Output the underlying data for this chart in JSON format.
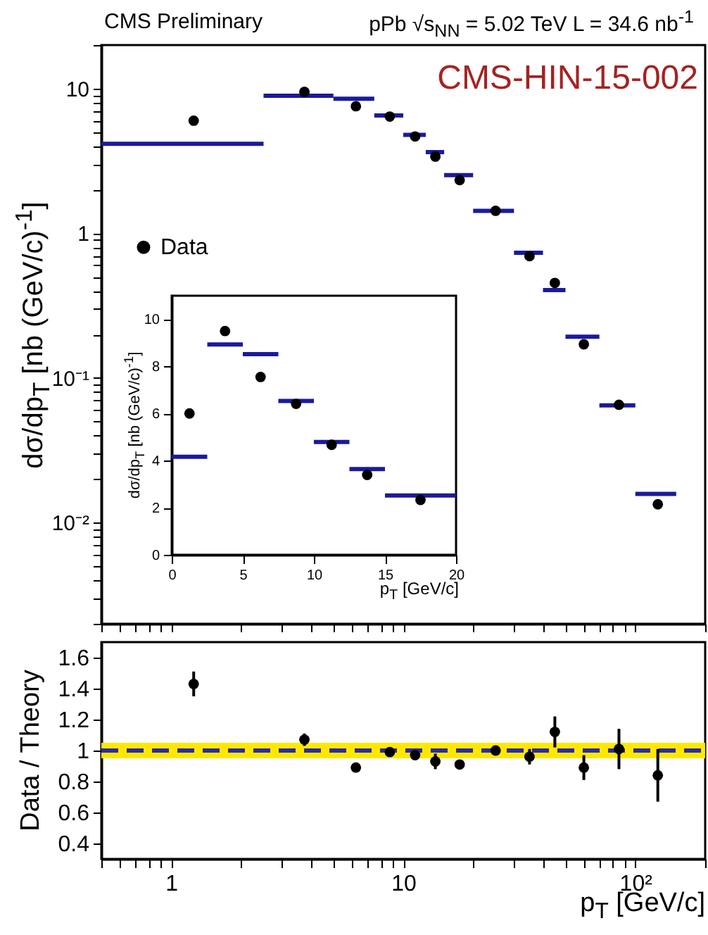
{
  "chart_data": [
    {
      "type": "scatter",
      "title": "CMS Preliminary",
      "subtitle": "pPb √s$_{NN}$ = 5.02 TeV L = 34.6 nb$^{-1}$",
      "ylabel": "dσ/dp$_{T}$ [nb (GeV/c)$^{-1}$]",
      "annotations": [
        "CMS-HIN-15-002"
      ],
      "log": "xy",
      "xlim": [
        0.5,
        200
      ],
      "ylim": [
        0.002,
        20
      ],
      "tick_labels": "y",
      "legend": "left",
      "xticks": [
        {
          "value": 0.5,
          "label": null
        },
        {
          "value": 0.6,
          "label": null
        },
        {
          "value": 0.7,
          "label": null
        },
        {
          "value": 0.8,
          "label": null
        },
        {
          "value": 0.9,
          "label": null
        },
        1,
        {
          "value": 2,
          "label": null
        },
        {
          "value": 3,
          "label": null
        },
        {
          "value": 4,
          "label": null
        },
        {
          "value": 5,
          "label": null
        },
        {
          "value": 6,
          "label": null
        },
        {
          "value": 7,
          "label": null
        },
        {
          "value": 8,
          "label": null
        },
        {
          "value": 9,
          "label": null
        },
        10,
        {
          "value": 20,
          "label": null
        },
        {
          "value": 30,
          "label": null
        },
        {
          "value": 40,
          "label": null
        },
        {
          "value": 50,
          "label": null
        },
        {
          "value": 60,
          "label": null
        },
        {
          "value": 70,
          "label": null
        },
        {
          "value": 80,
          "label": null
        },
        {
          "value": 90,
          "label": null
        },
        {
          "value": 100,
          "label": null
        },
        {
          "value": 200,
          "label": null
        }
      ],
      "yticks": [
        {
          "value": 0.002,
          "label": null
        },
        {
          "value": 0.003,
          "label": null
        },
        {
          "value": 0.004,
          "label": null
        },
        {
          "value": 0.005,
          "label": null
        },
        {
          "value": 0.006,
          "label": null
        },
        {
          "value": 0.007,
          "label": null
        },
        {
          "value": 0.008,
          "label": null
        },
        {
          "value": 0.009,
          "label": null
        },
        {
          "value": 0.01,
          "label": "10⁻²"
        },
        {
          "value": 0.02,
          "label": null
        },
        {
          "value": 0.03,
          "label": null
        },
        {
          "value": 0.04,
          "label": null
        },
        {
          "value": 0.05,
          "label": null
        },
        {
          "value": 0.06,
          "label": null
        },
        {
          "value": 0.07,
          "label": null
        },
        {
          "value": 0.08,
          "label": null
        },
        {
          "value": 0.09,
          "label": null
        },
        {
          "value": 0.1,
          "label": "10⁻¹"
        },
        {
          "value": 0.2,
          "label": null
        },
        {
          "value": 0.3,
          "label": null
        },
        {
          "value": 0.4,
          "label": null
        },
        {
          "value": 0.5,
          "label": null
        },
        {
          "value": 0.6,
          "label": null
        },
        {
          "value": 0.7,
          "label": null
        },
        {
          "value": 0.8,
          "label": null
        },
        {
          "value": 0.9,
          "label": null
        },
        1,
        {
          "value": 2,
          "label": null
        },
        {
          "value": 3,
          "label": null
        },
        {
          "value": 4,
          "label": null
        },
        {
          "value": 5,
          "label": null
        },
        {
          "value": 6,
          "label": null
        },
        {
          "value": 7,
          "label": null
        },
        {
          "value": 8,
          "label": null
        },
        {
          "value": 9,
          "label": null
        },
        10,
        {
          "value": 20,
          "label": null
        }
      ],
      "series": [
        {
          "name": "Data",
          "marker": "circle",
          "color": "#000000",
          "x": [
            1.25,
            3.75,
            6.25,
            8.75,
            11.25,
            13.75,
            17.5,
            25,
            35,
            45,
            60,
            85,
            125
          ],
          "values": [
            6.0,
            9.5,
            7.55,
            6.41,
            4.67,
            3.39,
            2.33,
            1.43,
            0.695,
            0.454,
            0.171,
            0.0653,
            0.0134
          ]
        },
        {
          "type": "line",
          "color": "#1a1a9c",
          "x": [
            0.5,
            2.5
          ],
          "values": [
            4.16,
            4.16
          ]
        },
        {
          "type": "line",
          "color": "#1a1a9c",
          "x": [
            2.5,
            5
          ],
          "values": [
            8.93,
            8.93
          ]
        },
        {
          "type": "line",
          "color": "#1a1a9c",
          "x": [
            5,
            7.5
          ],
          "values": [
            8.52,
            8.52
          ]
        },
        {
          "type": "line",
          "color": "#1a1a9c",
          "x": [
            7.5,
            10
          ],
          "values": [
            6.53,
            6.53
          ]
        },
        {
          "type": "line",
          "color": "#1a1a9c",
          "x": [
            10,
            12.5
          ],
          "values": [
            4.79,
            4.79
          ]
        },
        {
          "type": "line",
          "color": "#1a1a9c",
          "x": [
            12.5,
            15
          ],
          "values": [
            3.64,
            3.64
          ]
        },
        {
          "type": "line",
          "color": "#1a1a9c",
          "x": [
            15,
            20
          ],
          "values": [
            2.52,
            2.52
          ]
        },
        {
          "type": "line",
          "color": "#1a1a9c",
          "x": [
            20,
            30
          ],
          "values": [
            1.43,
            1.43
          ]
        },
        {
          "type": "line",
          "color": "#1a1a9c",
          "x": [
            30,
            40
          ],
          "values": [
            0.733,
            0.733
          ]
        },
        {
          "type": "line",
          "color": "#1a1a9c",
          "x": [
            40,
            50
          ],
          "values": [
            0.405,
            0.405
          ]
        },
        {
          "type": "line",
          "color": "#1a1a9c",
          "x": [
            50,
            70
          ],
          "values": [
            0.193,
            0.193
          ]
        },
        {
          "type": "line",
          "color": "#1a1a9c",
          "x": [
            70,
            100
          ],
          "values": [
            0.0647,
            0.0647
          ]
        },
        {
          "type": "line",
          "color": "#1a1a9c",
          "x": [
            100,
            150
          ],
          "values": [
            0.0158,
            0.0158
          ]
        }
      ]
    },
    {
      "type": "scatter",
      "xlabel": "p$_{T}$ [GeV/c]",
      "ylabel": "dσ/dp$_{T}$ [nb (GeV/c)$^{-1}$]",
      "xlim": [
        0,
        20
      ],
      "ylim": [
        0,
        11
      ],
      "xticks": [
        0,
        5,
        10,
        15,
        20
      ],
      "yticks": [
        0,
        2,
        4,
        6,
        8,
        10
      ],
      "series": [
        {
          "marker": "circle",
          "color": "#000000",
          "x": [
            1.25,
            3.75,
            6.25,
            8.75,
            11.25,
            13.75,
            17.5
          ],
          "values": [
            6.0,
            9.5,
            7.55,
            6.41,
            4.67,
            3.39,
            2.33
          ]
        },
        {
          "type": "line",
          "color": "#1a1a9c",
          "x": [
            0,
            2.5
          ],
          "values": [
            4.16,
            4.16
          ]
        },
        {
          "type": "line",
          "color": "#1a1a9c",
          "x": [
            2.5,
            5
          ],
          "values": [
            8.93,
            8.93
          ]
        },
        {
          "type": "line",
          "color": "#1a1a9c",
          "x": [
            5,
            7.5
          ],
          "values": [
            8.52,
            8.52
          ]
        },
        {
          "type": "line",
          "color": "#1a1a9c",
          "x": [
            7.5,
            10
          ],
          "values": [
            6.53,
            6.53
          ]
        },
        {
          "type": "line",
          "color": "#1a1a9c",
          "x": [
            10,
            12.5
          ],
          "values": [
            4.79,
            4.79
          ]
        },
        {
          "type": "line",
          "color": "#1a1a9c",
          "x": [
            12.5,
            15
          ],
          "values": [
            3.64,
            3.64
          ]
        },
        {
          "type": "line",
          "color": "#1a1a9c",
          "x": [
            15,
            20
          ],
          "values": [
            2.52,
            2.52
          ]
        }
      ]
    },
    {
      "type": "scatter",
      "xlabel": "p$_{T}$ [GeV/c]",
      "ylabel": "Data / Theory",
      "log": "x",
      "xlim": [
        0.5,
        200
      ],
      "ylim": [
        0.3,
        1.7
      ],
      "xticks": [
        {
          "value": 0.5,
          "label": null
        },
        {
          "value": 0.6,
          "label": null
        },
        {
          "value": 0.7,
          "label": null
        },
        {
          "value": 0.8,
          "label": null
        },
        {
          "value": 0.9,
          "label": null
        },
        1,
        {
          "value": 2,
          "label": null
        },
        {
          "value": 3,
          "label": null
        },
        {
          "value": 4,
          "label": null
        },
        {
          "value": 5,
          "label": null
        },
        {
          "value": 6,
          "label": null
        },
        {
          "value": 7,
          "label": null
        },
        {
          "value": 8,
          "label": null
        },
        {
          "value": 9,
          "label": null
        },
        10,
        {
          "value": 20,
          "label": null
        },
        {
          "value": 30,
          "label": null
        },
        {
          "value": 40,
          "label": null
        },
        {
          "value": 50,
          "label": null
        },
        {
          "value": 60,
          "label": null
        },
        {
          "value": 70,
          "label": null
        },
        {
          "value": 80,
          "label": null
        },
        {
          "value": 90,
          "label": null
        },
        {
          "value": 100,
          "label": "10²"
        },
        {
          "value": 200,
          "label": null
        }
      ],
      "yticks": [
        0.4,
        0.6,
        0.8,
        1,
        1.2,
        1.4,
        1.6
      ],
      "bands": [
        {
          "axis": "y",
          "from": 0.95,
          "to": 1.05,
          "color": "#ffe800"
        }
      ],
      "ref_lines": [
        {
          "axis": "y",
          "value": 1,
          "color": "#2a2aa8",
          "line_style": "dashed"
        }
      ],
      "series": [
        {
          "marker": "circle",
          "color": "#000000",
          "x": [
            1.25,
            3.75,
            6.25,
            8.75,
            11.25,
            13.75,
            17.5,
            25,
            35,
            45,
            60,
            85,
            125
          ],
          "values": [
            1.43,
            1.07,
            0.89,
            0.99,
            0.97,
            0.93,
            0.91,
            1.0,
            0.96,
            1.12,
            0.89,
            1.01,
            0.84
          ],
          "errors": [
            0.08,
            0.04,
            0.03,
            0.03,
            0.03,
            0.05,
            0.03,
            0.02,
            0.05,
            0.1,
            0.08,
            0.13,
            0.17
          ]
        }
      ]
    }
  ]
}
